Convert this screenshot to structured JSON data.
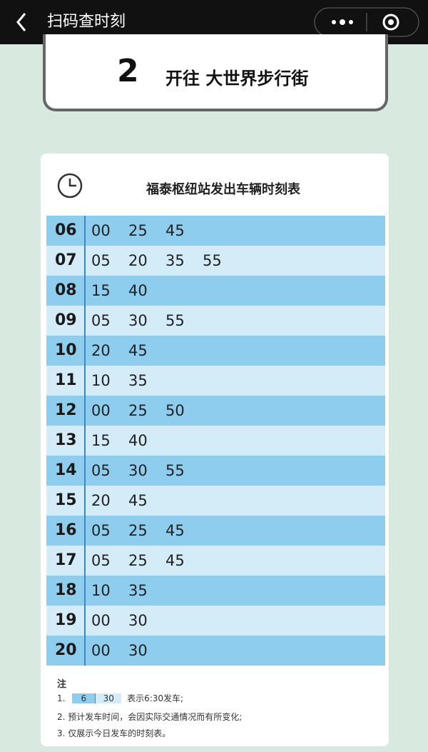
{
  "header": {
    "title": "扫码查时刻"
  },
  "route": {
    "number": "2",
    "destination": "开往 大世界步行街"
  },
  "timetable": {
    "title": "福泰枢纽站发出车辆时刻表",
    "rows": [
      {
        "hour": "06",
        "minutes": [
          "00",
          "25",
          "45"
        ]
      },
      {
        "hour": "07",
        "minutes": [
          "05",
          "20",
          "35",
          "55"
        ]
      },
      {
        "hour": "08",
        "minutes": [
          "15",
          "40"
        ]
      },
      {
        "hour": "09",
        "minutes": [
          "05",
          "30",
          "55"
        ]
      },
      {
        "hour": "10",
        "minutes": [
          "20",
          "45"
        ]
      },
      {
        "hour": "11",
        "minutes": [
          "10",
          "35"
        ]
      },
      {
        "hour": "12",
        "minutes": [
          "00",
          "25",
          "50"
        ]
      },
      {
        "hour": "13",
        "minutes": [
          "15",
          "40"
        ]
      },
      {
        "hour": "14",
        "minutes": [
          "05",
          "30",
          "55"
        ]
      },
      {
        "hour": "15",
        "minutes": [
          "20",
          "45"
        ]
      },
      {
        "hour": "16",
        "minutes": [
          "05",
          "25",
          "45"
        ]
      },
      {
        "hour": "17",
        "minutes": [
          "05",
          "25",
          "45"
        ]
      },
      {
        "hour": "18",
        "minutes": [
          "10",
          "35"
        ]
      },
      {
        "hour": "19",
        "minutes": [
          "00",
          "30"
        ]
      },
      {
        "hour": "20",
        "minutes": [
          "00",
          "30"
        ]
      }
    ]
  },
  "notes": {
    "label": "注",
    "items": [
      {
        "number": "1.",
        "example_hour": "6",
        "example_minute": "30",
        "text": "表示6:30发车;"
      },
      {
        "text": "2. 预计发车时间，会因实际交通情况而有所变化;"
      },
      {
        "text": "3. 仅展示今日发车的时刻表。"
      }
    ]
  }
}
